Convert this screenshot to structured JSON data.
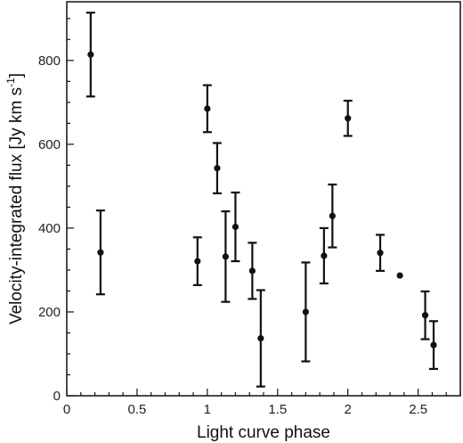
{
  "chart_data": {
    "type": "scatter",
    "title": "",
    "xlabel": "Light curve phase",
    "ylabel": "Velocity-integrated flux [Jy km s",
    "ylabel_superscript": "-1",
    "ylabel_close": "]",
    "xlim": [
      0,
      2.8
    ],
    "ylim": [
      0,
      940
    ],
    "x_ticks": [
      0,
      0.5,
      1,
      1.5,
      2,
      2.5
    ],
    "x_tick_labels": [
      "0",
      "0.5",
      "1",
      "1.5",
      "2",
      "2.5"
    ],
    "y_ticks": [
      0,
      200,
      400,
      600,
      800
    ],
    "y_tick_labels": [
      "0",
      "200",
      "400",
      "600",
      "800"
    ],
    "grid": false,
    "legend": "none",
    "marker_color": "#111111",
    "points": [
      {
        "x": 0.17,
        "y": 814,
        "err": 100
      },
      {
        "x": 0.24,
        "y": 342,
        "err": 100
      },
      {
        "x": 0.93,
        "y": 321,
        "err": 57
      },
      {
        "x": 1.0,
        "y": 685,
        "err": 56
      },
      {
        "x": 1.07,
        "y": 543,
        "err": 60
      },
      {
        "x": 1.13,
        "y": 332,
        "err": 108
      },
      {
        "x": 1.2,
        "y": 403,
        "err": 82
      },
      {
        "x": 1.32,
        "y": 298,
        "err": 67
      },
      {
        "x": 1.38,
        "y": 137,
        "err": 115
      },
      {
        "x": 1.7,
        "y": 200,
        "err": 118
      },
      {
        "x": 1.83,
        "y": 334,
        "err": 66
      },
      {
        "x": 1.89,
        "y": 429,
        "err": 75
      },
      {
        "x": 2.0,
        "y": 662,
        "err": 42
      },
      {
        "x": 2.23,
        "y": 341,
        "err": 43
      },
      {
        "x": 2.37,
        "y": 287,
        "err": 0
      },
      {
        "x": 2.55,
        "y": 192,
        "err": 57
      },
      {
        "x": 2.61,
        "y": 121,
        "err": 57
      }
    ]
  }
}
